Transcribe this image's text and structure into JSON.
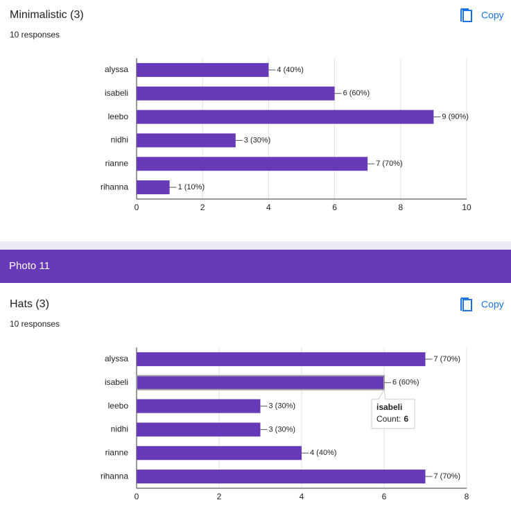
{
  "section_header": "Photo 11",
  "chart_data": [
    {
      "type": "bar",
      "orientation": "horizontal",
      "title": "Minimalistic (3)",
      "subtitle": "10 responses",
      "copy_button": "Copy",
      "categories": [
        "alyssa",
        "isabeli",
        "leebo",
        "nidhi",
        "rianne",
        "rihanna"
      ],
      "values": [
        4,
        6,
        9,
        3,
        7,
        1
      ],
      "value_labels": [
        "4 (40%)",
        "6 (60%)",
        "9 (90%)",
        "3 (30%)",
        "7 (70%)",
        "1 (10%)"
      ],
      "color": "#673ab7",
      "xlim": [
        0,
        10
      ],
      "xticks": [
        0,
        2,
        4,
        6,
        8,
        10
      ],
      "grid": true
    },
    {
      "type": "bar",
      "orientation": "horizontal",
      "title": "Hats (3)",
      "subtitle": "10 responses",
      "copy_button": "Copy",
      "categories": [
        "alyssa",
        "isabeli",
        "leebo",
        "nidhi",
        "rianne",
        "rihanna"
      ],
      "values": [
        7,
        6,
        3,
        3,
        4,
        7
      ],
      "value_labels": [
        "7 (70%)",
        "6 (60%)",
        "3 (30%)",
        "3 (30%)",
        "4 (40%)",
        "7 (70%)"
      ],
      "color": "#673ab7",
      "xlim": [
        0,
        8
      ],
      "xticks": [
        0,
        2,
        4,
        6,
        8
      ],
      "grid": true,
      "tooltip": {
        "category": "isabeli",
        "label": "Count:",
        "value": 6
      }
    }
  ]
}
